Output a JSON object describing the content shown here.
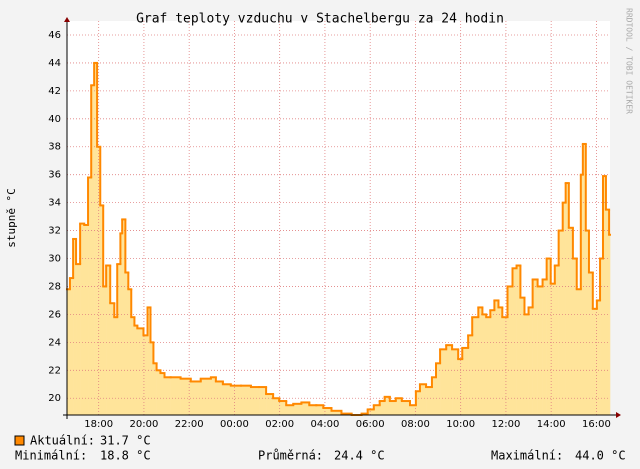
{
  "chart_data": {
    "type": "step-area",
    "title": "Graf teploty vzduchu v Stachelbergu za 24 hodin",
    "y_label": "stupně °C",
    "watermark": "RRDTOOL / TOBI OETIKER",
    "xlim": [
      16.6,
      40.6
    ],
    "xticks": [
      {
        "value": 18,
        "label": "18:00"
      },
      {
        "value": 20,
        "label": "20:00"
      },
      {
        "value": 22,
        "label": "22:00"
      },
      {
        "value": 24,
        "label": "00:00"
      },
      {
        "value": 26,
        "label": "02:00"
      },
      {
        "value": 28,
        "label": "04:00"
      },
      {
        "value": 30,
        "label": "06:00"
      },
      {
        "value": 32,
        "label": "08:00"
      },
      {
        "value": 34,
        "label": "10:00"
      },
      {
        "value": 36,
        "label": "12:00"
      },
      {
        "value": 38,
        "label": "14:00"
      },
      {
        "value": 40,
        "label": "16:00"
      }
    ],
    "ylim": [
      18.8,
      47
    ],
    "yticks": [
      20,
      22,
      24,
      26,
      28,
      30,
      32,
      34,
      36,
      38,
      40,
      42,
      44,
      46
    ],
    "grid": true,
    "series": [
      {
        "name": "Aktuální:",
        "color": "#ff8800",
        "fill": "#ffe49a",
        "x": [
          16.6,
          16.73,
          16.87,
          17.0,
          17.18,
          17.36,
          17.53,
          17.67,
          17.8,
          17.93,
          18.07,
          18.2,
          18.33,
          18.51,
          18.69,
          18.82,
          18.96,
          19.04,
          19.18,
          19.31,
          19.44,
          19.58,
          19.71,
          19.98,
          20.16,
          20.29,
          20.42,
          20.56,
          20.73,
          20.91,
          21.18,
          21.62,
          22.07,
          22.51,
          22.96,
          23.18,
          23.49,
          23.84,
          24.29,
          24.73,
          25.09,
          25.4,
          25.71,
          25.98,
          26.29,
          26.6,
          26.96,
          27.31,
          27.62,
          27.93,
          28.29,
          28.73,
          29.18,
          29.62,
          29.89,
          30.16,
          30.42,
          30.64,
          30.87,
          31.13,
          31.4,
          31.76,
          32.02,
          32.2,
          32.47,
          32.73,
          32.91,
          33.09,
          33.36,
          33.62,
          33.89,
          34.07,
          34.33,
          34.51,
          34.78,
          34.96,
          35.13,
          35.31,
          35.49,
          35.67,
          35.84,
          36.07,
          36.29,
          36.47,
          36.64,
          36.82,
          37.0,
          37.18,
          37.4,
          37.62,
          37.8,
          37.98,
          38.16,
          38.33,
          38.51,
          38.64,
          38.78,
          38.96,
          39.13,
          39.31,
          39.4,
          39.53,
          39.67,
          39.84,
          40.02,
          40.16,
          40.29,
          40.42,
          40.56
        ],
        "values": [
          27.8,
          28.6,
          31.4,
          29.6,
          32.5,
          32.4,
          35.8,
          42.4,
          44.0,
          38.0,
          33.8,
          28.0,
          29.5,
          26.8,
          25.8,
          29.6,
          31.8,
          32.8,
          29.0,
          27.8,
          25.8,
          25.2,
          25.0,
          24.5,
          26.5,
          24.0,
          22.5,
          22.0,
          21.8,
          21.5,
          21.5,
          21.4,
          21.2,
          21.4,
          21.5,
          21.2,
          21.0,
          20.9,
          20.9,
          20.8,
          20.8,
          20.3,
          20.0,
          19.8,
          19.5,
          19.6,
          19.7,
          19.5,
          19.5,
          19.3,
          19.1,
          18.9,
          18.8,
          18.9,
          19.2,
          19.5,
          19.8,
          20.1,
          19.8,
          20.0,
          19.8,
          19.5,
          20.5,
          21.0,
          20.8,
          21.5,
          22.5,
          23.5,
          23.8,
          23.5,
          22.8,
          23.6,
          24.5,
          25.8,
          26.5,
          26.0,
          25.8,
          26.3,
          27.0,
          26.5,
          25.8,
          28.0,
          29.3,
          29.5,
          27.2,
          26.0,
          26.5,
          28.5,
          28.0,
          28.5,
          30.0,
          28.2,
          29.5,
          32.0,
          34.0,
          35.4,
          32.2,
          30.0,
          27.8,
          36.0,
          38.2,
          32.0,
          29.0,
          26.4,
          27.0,
          30.0,
          35.9,
          33.5,
          31.7
        ]
      }
    ],
    "stats": [
      {
        "label": "Aktuální:",
        "text": "31.7 °C"
      },
      {
        "label": "Minimální:",
        "text": "18.8 °C"
      },
      {
        "label": "Průměrná:",
        "text": "24.4 °C"
      },
      {
        "label": "Maximální:",
        "text": "44.0 °C"
      }
    ]
  }
}
